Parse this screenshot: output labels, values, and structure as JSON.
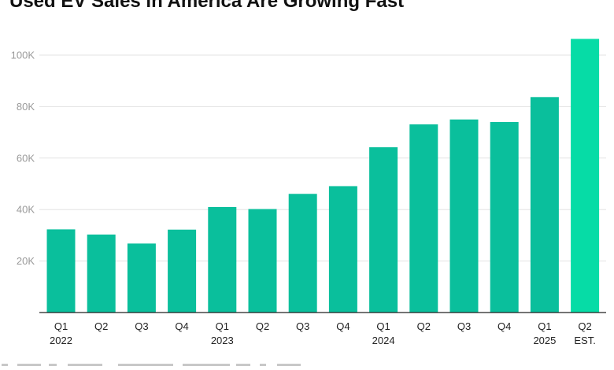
{
  "chart_data": {
    "type": "bar",
    "title": "Used EV Sales in America Are Growing Fast",
    "xlabel": "",
    "ylabel": "",
    "ylim": [
      0,
      110000
    ],
    "y_ticks": [
      20000,
      40000,
      60000,
      80000,
      100000
    ],
    "y_tick_labels": [
      "20K",
      "40K",
      "60K",
      "80K",
      "100K"
    ],
    "categories": [
      [
        "Q1",
        "2022"
      ],
      [
        "Q2",
        ""
      ],
      [
        "Q3",
        ""
      ],
      [
        "Q4",
        ""
      ],
      [
        "Q1",
        "2023"
      ],
      [
        "Q2",
        ""
      ],
      [
        "Q3",
        ""
      ],
      [
        "Q4",
        ""
      ],
      [
        "Q1",
        "2024"
      ],
      [
        "Q2",
        ""
      ],
      [
        "Q3",
        ""
      ],
      [
        "Q4",
        ""
      ],
      [
        "Q1",
        "2025"
      ],
      [
        "Q2",
        "EST."
      ]
    ],
    "values": [
      32300,
      30300,
      26800,
      32200,
      41000,
      40200,
      46100,
      49100,
      64200,
      73100,
      75000,
      74000,
      83700,
      106300
    ],
    "bar_colors": [
      "#0abf9c",
      "#0abf9c",
      "#0abf9c",
      "#0abf9c",
      "#0abf9c",
      "#0abf9c",
      "#0abf9c",
      "#0abf9c",
      "#0abf9c",
      "#0abf9c",
      "#0abf9c",
      "#0abf9c",
      "#0abf9c",
      "#06dca6"
    ],
    "grid": true,
    "legend": "none"
  }
}
